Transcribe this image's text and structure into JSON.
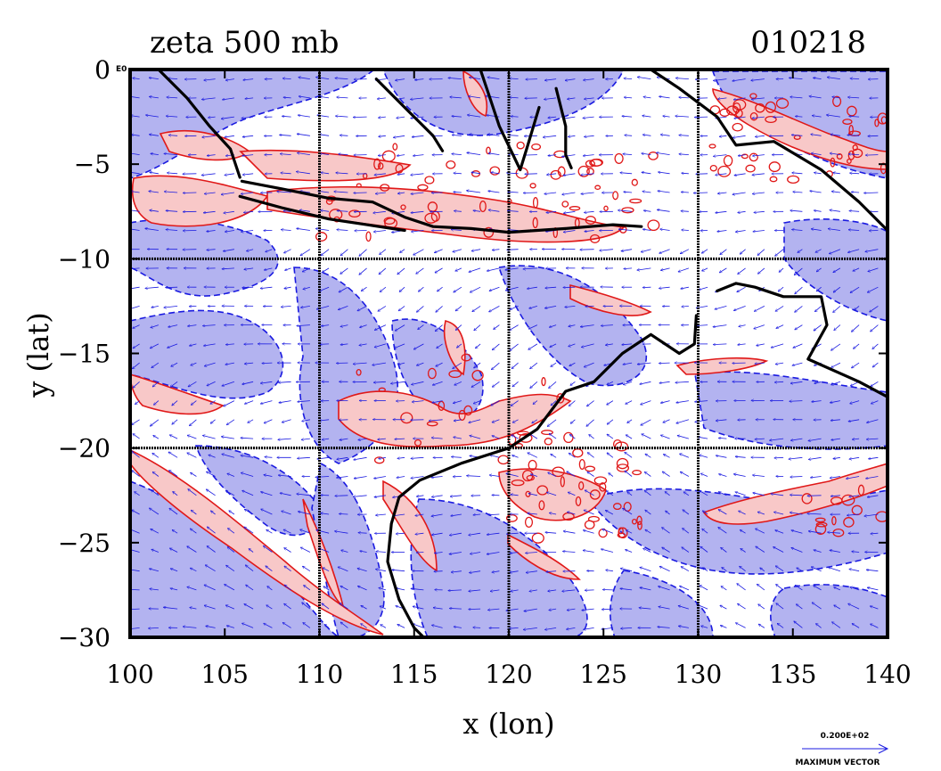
{
  "chart_data": {
    "type": "contour",
    "title": "zeta 500 mb",
    "date_label": "010218",
    "xlabel": "x (lon)",
    "ylabel": "y (lat)",
    "xlim": [
      100,
      140
    ],
    "ylim": [
      -30,
      0
    ],
    "x_ticks": [
      "100",
      "105",
      "110",
      "115",
      "120",
      "125",
      "130",
      "135",
      "140"
    ],
    "y_ticks": [
      "0",
      "−5",
      "−10",
      "−15",
      "−20",
      "−25",
      "−30"
    ],
    "corner_label": "E0",
    "grid_x": [
      110,
      120,
      130
    ],
    "grid_y": [
      -10,
      -20
    ],
    "grid": true,
    "legend": {
      "vector_magnitude": "0.200E+02",
      "vector_caption": "MAXIMUM VECTOR",
      "placement": "bottom-right"
    },
    "colors": {
      "negative_fill": "#b3b3f0",
      "positive_fill": "#f8c8c8",
      "positive_contour": "#e01818",
      "negative_contour": "#1a1ae0",
      "vectors": "#1a1ae0",
      "coastline": "#000000"
    },
    "coastlines": [
      [
        [
          101.5,
          0
        ],
        [
          103,
          -1.5
        ],
        [
          104.2,
          -3
        ],
        [
          105.3,
          -4.2
        ],
        [
          105.8,
          -5.7
        ]
      ],
      [
        [
          105.9,
          -5.9
        ],
        [
          108,
          -6.3
        ],
        [
          110.5,
          -6.8
        ],
        [
          112.8,
          -7
        ],
        [
          114.5,
          -7.8
        ],
        [
          116,
          -8.3
        ],
        [
          118,
          -8.4
        ],
        [
          120,
          -8.6
        ],
        [
          123,
          -8.4
        ],
        [
          125.5,
          -8.2
        ],
        [
          127,
          -8.3
        ]
      ],
      [
        [
          105.8,
          -6.7
        ],
        [
          108,
          -7.3
        ],
        [
          110.5,
          -7.9
        ],
        [
          112.5,
          -8.2
        ],
        [
          114.5,
          -8.5
        ]
      ],
      [
        [
          113,
          -0.5
        ],
        [
          114.5,
          -2
        ],
        [
          116,
          -3.5
        ],
        [
          116.5,
          -4.3
        ]
      ],
      [
        [
          118.5,
          0
        ],
        [
          119,
          -1.5
        ],
        [
          119.5,
          -3
        ],
        [
          120.6,
          -5.3
        ],
        [
          121,
          -4
        ],
        [
          121.6,
          -2
        ]
      ],
      [
        [
          122.5,
          -1
        ],
        [
          123,
          -3
        ],
        [
          123,
          -4.5
        ],
        [
          123.3,
          -5.2
        ]
      ],
      [
        [
          127.5,
          0
        ],
        [
          129,
          -1
        ],
        [
          131,
          -2.5
        ],
        [
          132,
          -4
        ],
        [
          134,
          -3.8
        ],
        [
          136.5,
          -5.3
        ],
        [
          138.5,
          -7
        ],
        [
          140,
          -8.5
        ]
      ],
      [
        [
          131,
          -11.7
        ],
        [
          132,
          -11.3
        ],
        [
          133,
          -11.5
        ],
        [
          134.5,
          -12
        ],
        [
          136.5,
          -12
        ],
        [
          136.8,
          -13.5
        ],
        [
          135.8,
          -15.3
        ],
        [
          138.5,
          -16.5
        ],
        [
          140,
          -17.3
        ]
      ],
      [
        [
          129.9,
          -13
        ],
        [
          129.8,
          -14.5
        ],
        [
          129,
          -15
        ],
        [
          127.5,
          -14
        ],
        [
          126,
          -15
        ],
        [
          124.5,
          -16.5
        ],
        [
          123,
          -17
        ],
        [
          121.5,
          -19
        ],
        [
          120,
          -20
        ],
        [
          117.5,
          -20.8
        ],
        [
          115.3,
          -21.7
        ],
        [
          114.2,
          -22.6
        ],
        [
          113.8,
          -24
        ],
        [
          113.6,
          -26
        ],
        [
          114.2,
          -28
        ],
        [
          115,
          -29.5
        ],
        [
          115.5,
          -30
        ]
      ]
    ]
  }
}
